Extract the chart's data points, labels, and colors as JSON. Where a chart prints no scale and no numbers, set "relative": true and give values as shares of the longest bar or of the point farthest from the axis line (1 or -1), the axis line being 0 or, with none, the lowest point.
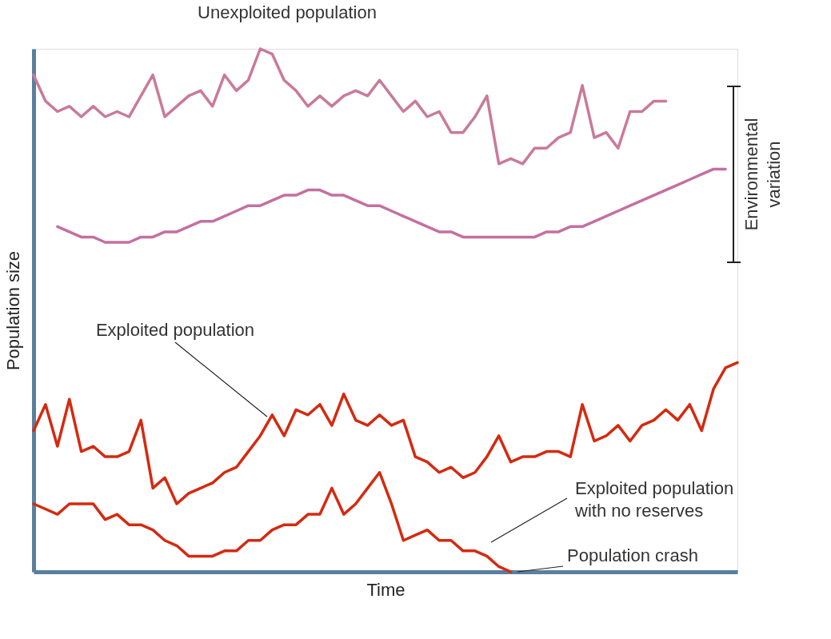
{
  "chart_data": {
    "type": "line",
    "relative": true,
    "xlabel": "Time",
    "ylabel": "Population size",
    "legend": false,
    "grid": false,
    "line_style": "solid",
    "marker": "none",
    "categories": [
      null,
      null,
      null,
      null,
      null,
      null,
      null,
      null,
      null,
      null,
      null,
      null,
      null,
      null,
      null,
      null,
      null,
      null,
      null,
      null,
      null,
      null,
      null,
      null,
      null,
      null,
      null,
      null,
      null,
      null,
      null,
      null,
      null,
      null,
      null,
      null,
      null,
      null,
      null,
      null,
      null,
      null,
      null,
      null,
      null,
      null,
      null,
      null,
      null,
      null,
      null,
      null,
      null,
      null,
      null,
      null,
      null,
      null,
      null,
      null
    ],
    "series": [
      {
        "name": "Unexploited population",
        "color": "#c97a9a",
        "values": [
          0.95,
          0.9,
          0.88,
          0.89,
          0.87,
          0.89,
          0.87,
          0.88,
          0.87,
          0.91,
          0.95,
          0.87,
          0.89,
          0.91,
          0.92,
          0.89,
          0.95,
          0.92,
          0.94,
          1.0,
          0.99,
          0.94,
          0.92,
          0.89,
          0.91,
          0.89,
          0.91,
          0.92,
          0.91,
          0.94,
          0.91,
          0.88,
          0.9,
          0.87,
          0.88,
          0.84,
          0.84,
          0.87,
          0.91,
          0.78,
          0.79,
          0.78,
          0.81,
          0.81,
          0.83,
          0.84,
          0.93,
          0.83,
          0.84,
          0.81,
          0.88,
          0.88,
          0.9,
          0.9,
          null,
          null,
          null,
          null,
          null,
          null
        ]
      },
      {
        "color": "#c470a0",
        "values": [
          null,
          null,
          0.66,
          0.65,
          0.64,
          0.64,
          0.63,
          0.63,
          0.63,
          0.64,
          0.64,
          0.65,
          0.65,
          0.66,
          0.67,
          0.67,
          0.68,
          0.69,
          0.7,
          0.7,
          0.71,
          0.72,
          0.72,
          0.73,
          0.73,
          0.72,
          0.72,
          0.71,
          0.7,
          0.7,
          0.69,
          0.68,
          0.67,
          0.66,
          0.65,
          0.65,
          0.64,
          0.64,
          0.64,
          0.64,
          0.64,
          0.64,
          0.64,
          0.65,
          0.65,
          0.66,
          0.66,
          0.67,
          0.68,
          0.69,
          0.7,
          0.71,
          0.72,
          0.73,
          0.74,
          0.75,
          0.76,
          0.77,
          0.77,
          null
        ]
      },
      {
        "name": "Exploited population",
        "color": "#d42a10",
        "values": [
          0.27,
          0.32,
          0.24,
          0.33,
          0.23,
          0.24,
          0.22,
          0.22,
          0.23,
          0.29,
          0.16,
          0.18,
          0.13,
          0.15,
          0.16,
          0.17,
          0.19,
          0.2,
          0.23,
          0.26,
          0.3,
          0.26,
          0.31,
          0.3,
          0.32,
          0.28,
          0.34,
          0.29,
          0.28,
          0.3,
          0.28,
          0.29,
          0.22,
          0.21,
          0.19,
          0.2,
          0.18,
          0.19,
          0.22,
          0.26,
          0.21,
          0.22,
          0.22,
          0.23,
          0.23,
          0.22,
          0.32,
          0.25,
          0.26,
          0.28,
          0.25,
          0.28,
          0.29,
          0.31,
          0.29,
          0.32,
          0.27,
          0.35,
          0.39,
          0.4
        ]
      },
      {
        "name": "Exploited population with no reserves",
        "color": "#d42a10",
        "values": [
          0.13,
          0.12,
          0.11,
          0.13,
          0.13,
          0.13,
          0.1,
          0.11,
          0.09,
          0.09,
          0.08,
          0.06,
          0.05,
          0.03,
          0.03,
          0.03,
          0.04,
          0.04,
          0.06,
          0.06,
          0.08,
          0.09,
          0.09,
          0.11,
          0.11,
          0.16,
          0.11,
          0.13,
          0.16,
          0.19,
          0.13,
          0.06,
          0.07,
          0.08,
          0.06,
          0.06,
          0.04,
          0.04,
          0.03,
          0.01,
          0,
          null,
          null,
          null,
          null,
          null,
          null,
          null,
          null,
          null,
          null,
          null,
          null,
          null,
          null,
          null,
          null,
          null,
          null,
          null
        ]
      }
    ],
    "annotations": [
      "Environmental variation",
      "Population crash"
    ]
  }
}
